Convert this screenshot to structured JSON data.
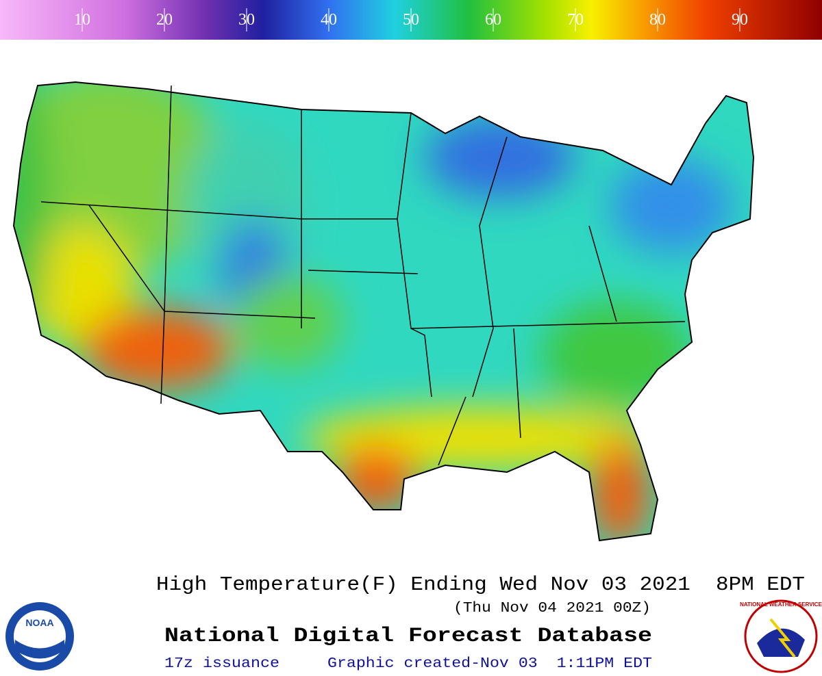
{
  "legend": {
    "range": [
      0,
      100
    ],
    "ticks": [
      10,
      20,
      30,
      40,
      50,
      60,
      70,
      80,
      90
    ]
  },
  "title": "High Temperature(F) Ending Wed Nov 03 2021  8PM EDT",
  "subtitle": "(Thu Nov 04 2021 00Z)",
  "product": "National Digital Forecast Database",
  "issuance": "17z issuance",
  "created": "Graphic created-Nov 03  1:11PM EDT",
  "logos": {
    "left": "NOAA",
    "right": "NATIONAL WEATHER SERVICE"
  }
}
